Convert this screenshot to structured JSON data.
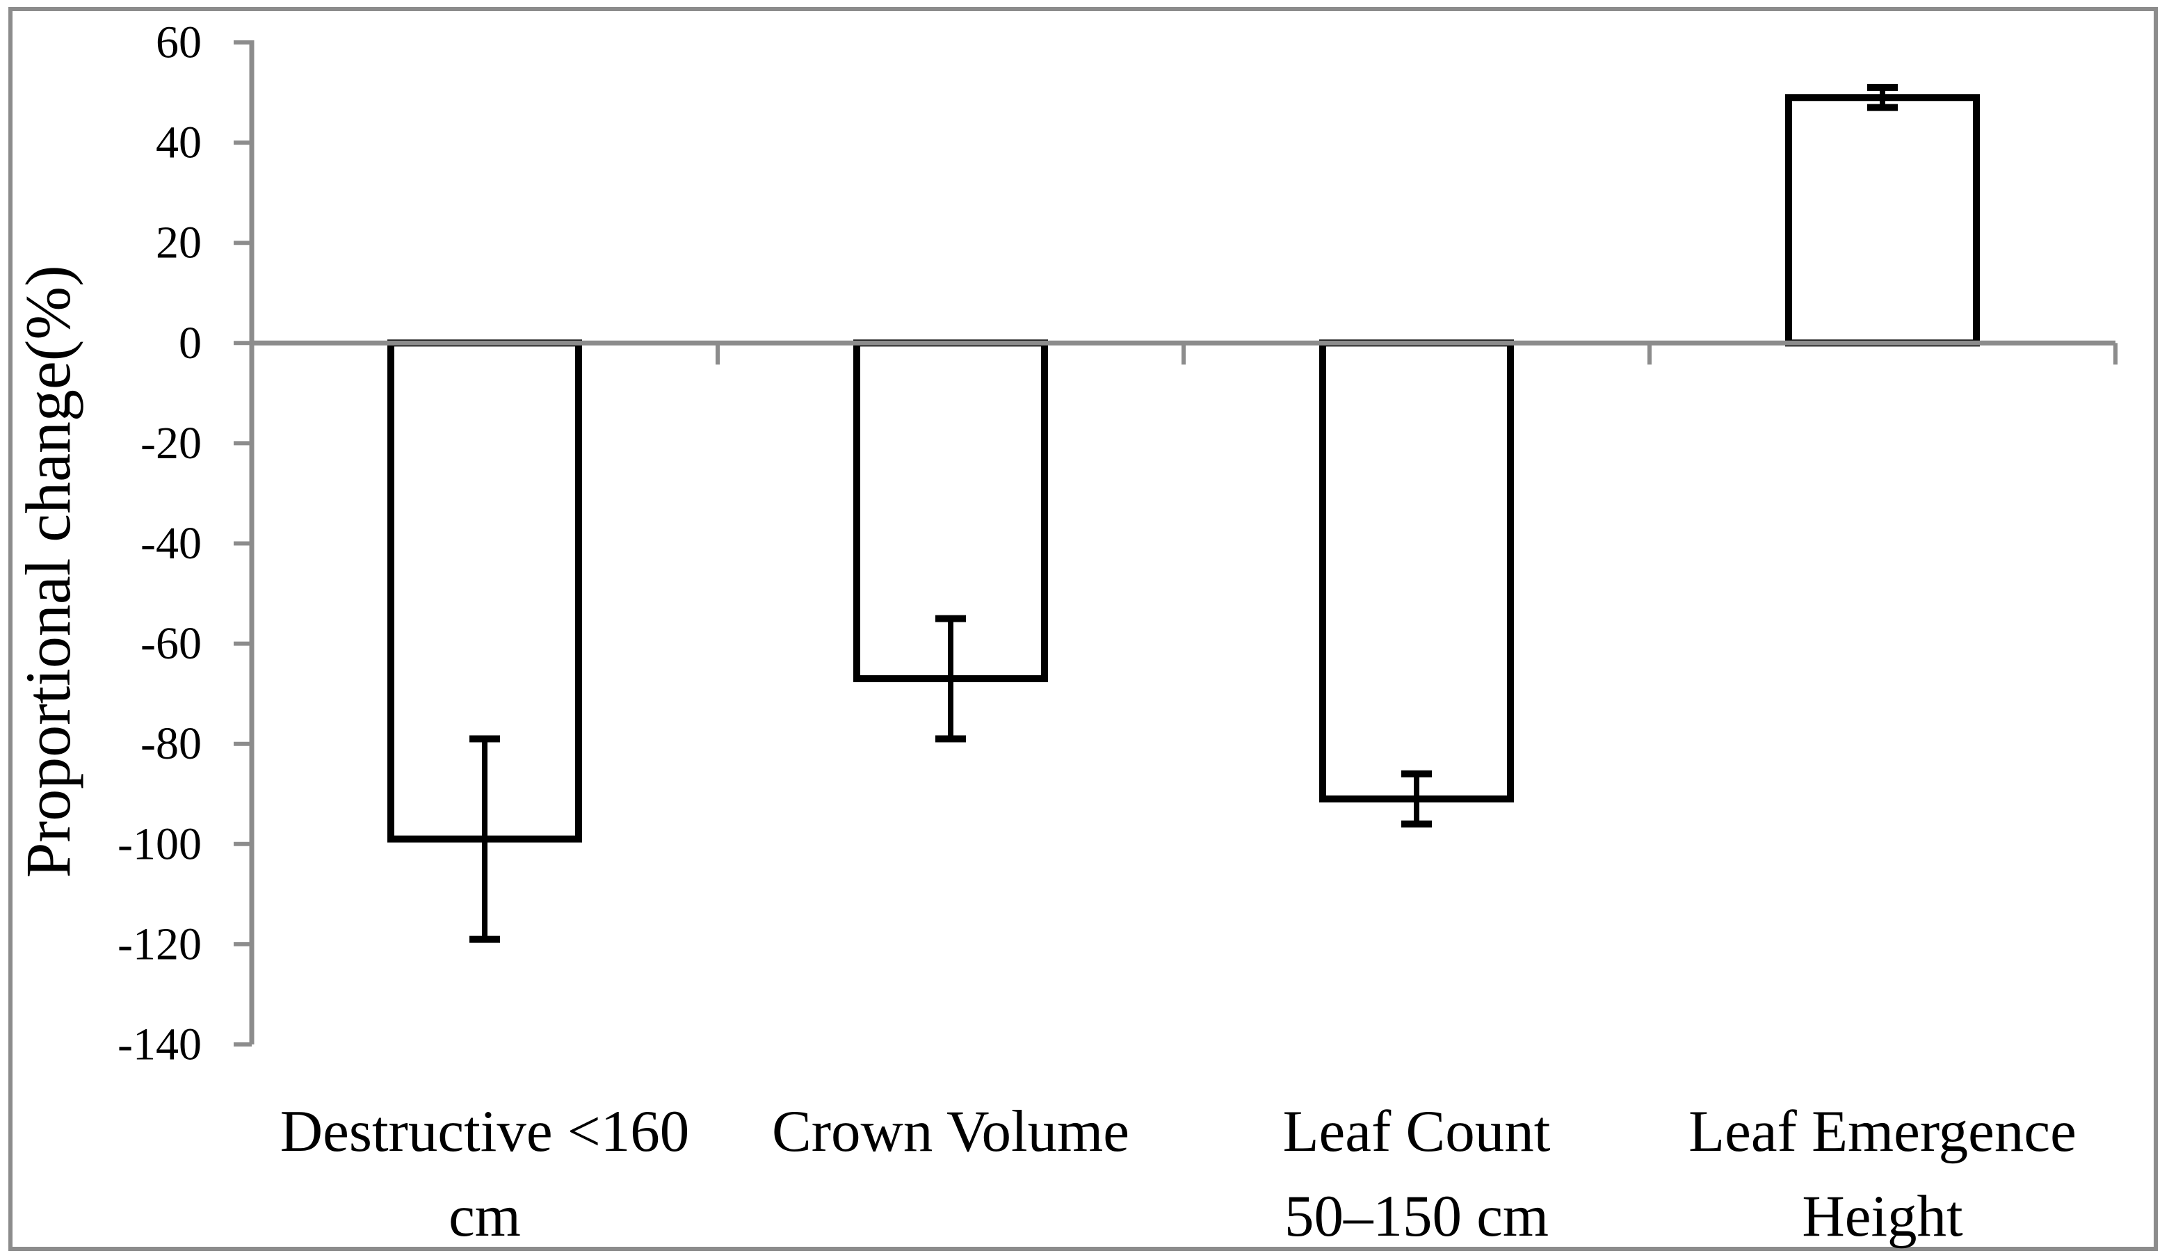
{
  "chart_data": {
    "type": "bar",
    "title": "",
    "xlabel": "",
    "ylabel": "Proportional change(%)",
    "ylim": [
      -140,
      60
    ],
    "yticks": [
      60,
      40,
      20,
      0,
      -20,
      -40,
      -60,
      -80,
      -100,
      -120,
      -140
    ],
    "ytick_labels": [
      "60",
      "40",
      "20",
      "0",
      "-20",
      "-40",
      "-60",
      "-80",
      "-100",
      "-120",
      "-140"
    ],
    "categories": [
      "Destructive <160 cm",
      "Crown Volume",
      "Leaf Count 50–150 cm",
      "Leaf Emergence Height"
    ],
    "category_label_lines": [
      [
        "Destructive <160",
        "cm"
      ],
      [
        "Crown Volume"
      ],
      [
        "Leaf Count",
        "50–150 cm"
      ],
      [
        "Leaf Emergence",
        "Height"
      ]
    ],
    "series": [
      {
        "name": "Proportional change",
        "values": [
          -99,
          -67,
          -91,
          49
        ],
        "error_bars": [
          20,
          12,
          5,
          2
        ]
      }
    ],
    "grid": false,
    "legend_position": "none",
    "colors": {
      "bar_fill": "#ffffff",
      "bar_stroke": "#000000",
      "error_bar": "#000000",
      "axis": "#8c8c8c",
      "frame_border": "#8c8c8c",
      "text": "#000000",
      "background": "#ffffff"
    }
  }
}
